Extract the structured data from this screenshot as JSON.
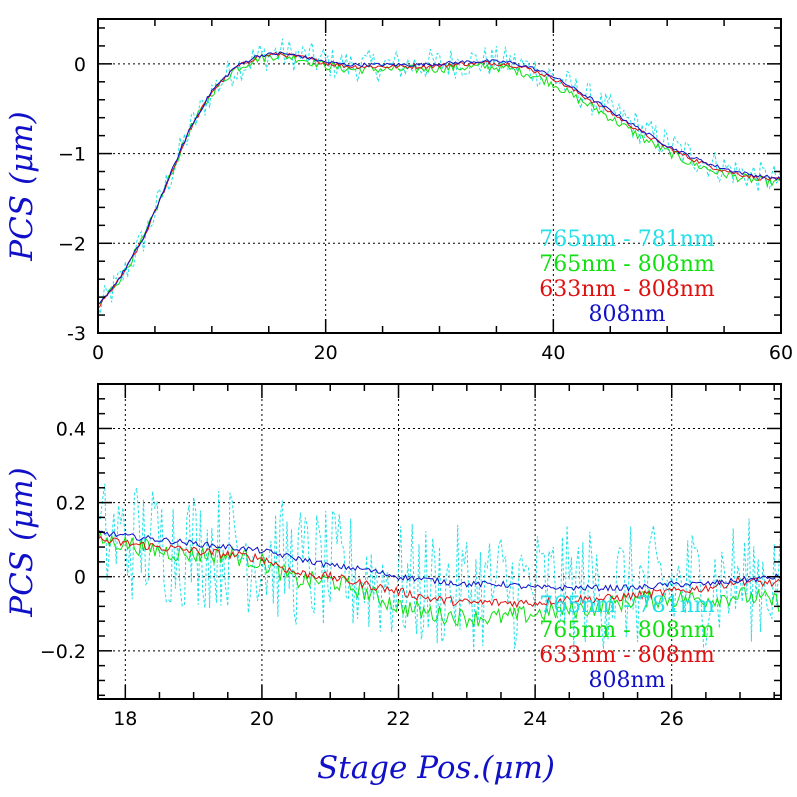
{
  "chart_data": [
    {
      "type": "line",
      "panel": "top",
      "xlim": [
        0,
        60
      ],
      "ylim": [
        -3,
        0.5
      ],
      "xticks": [
        0,
        20,
        40,
        60
      ],
      "xtick_labels": [
        "0",
        "20",
        "40",
        "60"
      ],
      "yticks": [
        -3,
        -2,
        -1,
        0
      ],
      "ytick_labels": [
        "-3",
        "−2",
        "−1",
        "0"
      ],
      "xlabel": "",
      "ylabel": "PCS (μm)",
      "grid": true,
      "legend_position": "bottom-right",
      "x": [
        0,
        2,
        4,
        6,
        8,
        10,
        12,
        14,
        16,
        18,
        20,
        22,
        24,
        26,
        28,
        30,
        32,
        34,
        36,
        38,
        40,
        42,
        44,
        46,
        48,
        50,
        52,
        54,
        56,
        58,
        60
      ],
      "series": [
        {
          "name": "765nm - 781nm",
          "color": "#22e0e8",
          "dashed": true,
          "noise": 0.18,
          "values": [
            -2.75,
            -2.4,
            -1.95,
            -1.35,
            -0.75,
            -0.3,
            -0.05,
            0.08,
            0.12,
            0.08,
            0.02,
            -0.02,
            -0.02,
            -0.02,
            -0.01,
            0.0,
            0.02,
            0.03,
            0.02,
            -0.05,
            -0.15,
            -0.3,
            -0.45,
            -0.6,
            -0.75,
            -0.9,
            -1.02,
            -1.12,
            -1.2,
            -1.26,
            -1.3
          ]
        },
        {
          "name": "765nm - 808nm",
          "color": "#10e010",
          "dashed": false,
          "noise": 0.05,
          "values": [
            -2.7,
            -2.38,
            -1.95,
            -1.35,
            -0.75,
            -0.32,
            -0.06,
            0.06,
            0.1,
            0.05,
            -0.02,
            -0.06,
            -0.06,
            -0.06,
            -0.06,
            -0.05,
            -0.04,
            -0.03,
            -0.05,
            -0.12,
            -0.22,
            -0.38,
            -0.52,
            -0.68,
            -0.84,
            -0.98,
            -1.1,
            -1.19,
            -1.26,
            -1.3,
            -1.33
          ]
        },
        {
          "name": "633nm - 808nm",
          "color": "#e01010",
          "dashed": false,
          "noise": 0.025,
          "values": [
            -2.72,
            -2.38,
            -1.95,
            -1.35,
            -0.75,
            -0.31,
            -0.05,
            0.08,
            0.11,
            0.07,
            0.01,
            -0.03,
            -0.03,
            -0.03,
            -0.03,
            -0.02,
            0.0,
            0.01,
            0.0,
            -0.06,
            -0.16,
            -0.31,
            -0.46,
            -0.62,
            -0.78,
            -0.93,
            -1.05,
            -1.15,
            -1.22,
            -1.27,
            -1.3
          ]
        },
        {
          "name": "808nm",
          "color": "#1010c8",
          "dashed": false,
          "noise": 0.02,
          "values": [
            -2.7,
            -2.37,
            -1.94,
            -1.34,
            -0.74,
            -0.3,
            -0.04,
            0.09,
            0.12,
            0.08,
            0.02,
            -0.01,
            -0.01,
            -0.01,
            -0.01,
            0.0,
            0.02,
            0.03,
            0.02,
            -0.04,
            -0.14,
            -0.29,
            -0.44,
            -0.6,
            -0.76,
            -0.91,
            -1.03,
            -1.13,
            -1.2,
            -1.25,
            -1.28
          ]
        }
      ]
    },
    {
      "type": "line",
      "panel": "bottom",
      "xlim": [
        17.6,
        27.6
      ],
      "ylim": [
        -0.33,
        0.52
      ],
      "xticks": [
        18,
        20,
        22,
        24,
        26
      ],
      "xtick_labels": [
        "18",
        "20",
        "22",
        "24",
        "26"
      ],
      "yticks": [
        -0.2,
        0,
        0.2,
        0.4
      ],
      "ytick_labels": [
        "−0.2",
        "0",
        "0.2",
        "0.4"
      ],
      "xlabel": "Stage Pos.(μm)",
      "ylabel": "PCS (μm)",
      "grid": true,
      "legend_position": "bottom-right",
      "x": [
        17.6,
        18,
        18.5,
        19,
        19.5,
        20,
        20.5,
        21,
        21.5,
        22,
        22.5,
        23,
        23.5,
        24,
        24.5,
        25,
        25.5,
        26,
        26.5,
        27,
        27.6
      ],
      "series": [
        {
          "name": "765nm - 781nm",
          "color": "#22e0e8",
          "dashed": true,
          "noise": 0.17,
          "values": [
            0.1,
            0.1,
            0.09,
            0.08,
            0.08,
            0.06,
            0.03,
            0.01,
            0.0,
            -0.02,
            -0.03,
            -0.03,
            -0.03,
            -0.03,
            -0.03,
            -0.03,
            -0.03,
            -0.03,
            -0.02,
            -0.01,
            0.0
          ]
        },
        {
          "name": "765nm - 808nm",
          "color": "#10e010",
          "dashed": false,
          "noise": 0.025,
          "values": [
            0.1,
            0.09,
            0.07,
            0.06,
            0.06,
            0.04,
            -0.01,
            -0.01,
            -0.04,
            -0.08,
            -0.1,
            -0.11,
            -0.11,
            -0.1,
            -0.09,
            -0.08,
            -0.06,
            -0.06,
            -0.06,
            -0.05,
            -0.07
          ]
        },
        {
          "name": "633nm - 808nm",
          "color": "#e01010",
          "dashed": false,
          "noise": 0.012,
          "values": [
            0.1,
            0.09,
            0.08,
            0.07,
            0.06,
            0.05,
            0.01,
            0.0,
            -0.02,
            -0.04,
            -0.06,
            -0.07,
            -0.07,
            -0.07,
            -0.06,
            -0.06,
            -0.05,
            -0.04,
            -0.03,
            -0.01,
            -0.02
          ]
        },
        {
          "name": "808nm",
          "color": "#1010c8",
          "dashed": false,
          "noise": 0.008,
          "values": [
            0.12,
            0.11,
            0.1,
            0.09,
            0.08,
            0.07,
            0.05,
            0.03,
            0.02,
            0.0,
            -0.01,
            -0.02,
            -0.02,
            -0.03,
            -0.03,
            -0.03,
            -0.03,
            -0.02,
            -0.02,
            -0.01,
            0.0
          ]
        }
      ]
    }
  ]
}
